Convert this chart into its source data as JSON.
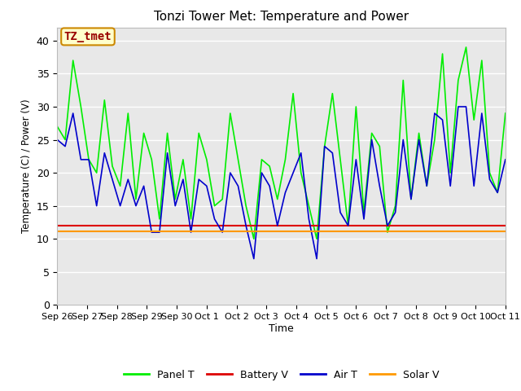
{
  "title": "Tonzi Tower Met: Temperature and Power",
  "xlabel": "Time",
  "ylabel": "Temperature (C) / Power (V)",
  "ylim": [
    0,
    42
  ],
  "yticks": [
    0,
    5,
    10,
    15,
    20,
    25,
    30,
    35,
    40
  ],
  "bg_color": "#e8e8e8",
  "fig_color": "#ffffff",
  "annotation_text": "TZ_tmet",
  "annotation_bg": "#ffffcc",
  "annotation_border": "#cc8800",
  "annotation_text_color": "#990000",
  "legend_labels": [
    "Panel T",
    "Battery V",
    "Air T",
    "Solar V"
  ],
  "legend_colors": [
    "#00ee00",
    "#dd0000",
    "#0000cc",
    "#ff9900"
  ],
  "x_labels": [
    "Sep 26",
    "Sep 27",
    "Sep 28",
    "Sep 29",
    "Sep 30",
    "Oct 1",
    "Oct 2",
    "Oct 3",
    "Oct 4",
    "Oct 5",
    "Oct 6",
    "Oct 7",
    "Oct 8",
    "Oct 9",
    "Oct 10",
    "Oct 11"
  ],
  "panel_t": [
    27,
    25,
    37,
    30,
    22,
    20,
    31,
    21,
    18,
    29,
    16,
    26,
    22,
    13,
    26,
    16,
    22,
    13,
    26,
    22,
    15,
    16,
    29,
    22,
    15,
    10,
    22,
    21,
    16,
    22,
    32,
    20,
    15,
    10,
    24,
    32,
    22,
    12,
    30,
    14,
    26,
    24,
    11,
    15,
    34,
    16,
    26,
    18,
    25,
    38,
    20,
    34,
    39,
    28,
    37,
    20,
    17,
    29
  ],
  "air_t": [
    25,
    24,
    29,
    22,
    22,
    15,
    23,
    19,
    15,
    19,
    15,
    18,
    11,
    11,
    23,
    15,
    19,
    11,
    19,
    18,
    13,
    11,
    20,
    18,
    12,
    7,
    20,
    18,
    12,
    17,
    20,
    23,
    13,
    7,
    24,
    23,
    14,
    12,
    22,
    13,
    25,
    18,
    12,
    14,
    25,
    16,
    25,
    18,
    29,
    28,
    18,
    30,
    30,
    18,
    29,
    19,
    17,
    22
  ],
  "battery_v": [
    12.0,
    12.0,
    12.0,
    12.0,
    12.0,
    12.0,
    12.0,
    12.0,
    12.0,
    12.0,
    12.0,
    12.0,
    12.0,
    12.0,
    12.0,
    12.0,
    12.0,
    12.0,
    12.0,
    12.0,
    12.0,
    12.0,
    12.0,
    12.0,
    12.0,
    12.0,
    12.0,
    12.0,
    12.0,
    12.0,
    12.0,
    12.0,
    12.0,
    12.0,
    12.0,
    12.0,
    12.0,
    12.0,
    12.0,
    12.0,
    12.0,
    12.0,
    12.0,
    12.0,
    12.0,
    12.0,
    12.0,
    12.0,
    12.0,
    12.0,
    12.0,
    12.0,
    12.0,
    12.0,
    12.0,
    12.0,
    12.0,
    12.0
  ],
  "solar_v": [
    11.2,
    11.2,
    11.2,
    11.2,
    11.2,
    11.2,
    11.2,
    11.2,
    11.2,
    11.2,
    11.2,
    11.2,
    11.2,
    11.2,
    11.2,
    11.2,
    11.2,
    11.2,
    11.2,
    11.2,
    11.2,
    11.2,
    11.2,
    11.2,
    11.2,
    11.2,
    11.2,
    11.2,
    11.2,
    11.2,
    11.2,
    11.2,
    11.2,
    11.2,
    11.2,
    11.2,
    11.2,
    11.2,
    11.2,
    11.2,
    11.2,
    11.2,
    11.2,
    11.2,
    11.2,
    11.2,
    11.2,
    11.2,
    11.2,
    11.2,
    11.2,
    11.2,
    11.2,
    11.2,
    11.2,
    11.2,
    11.2,
    11.2
  ]
}
